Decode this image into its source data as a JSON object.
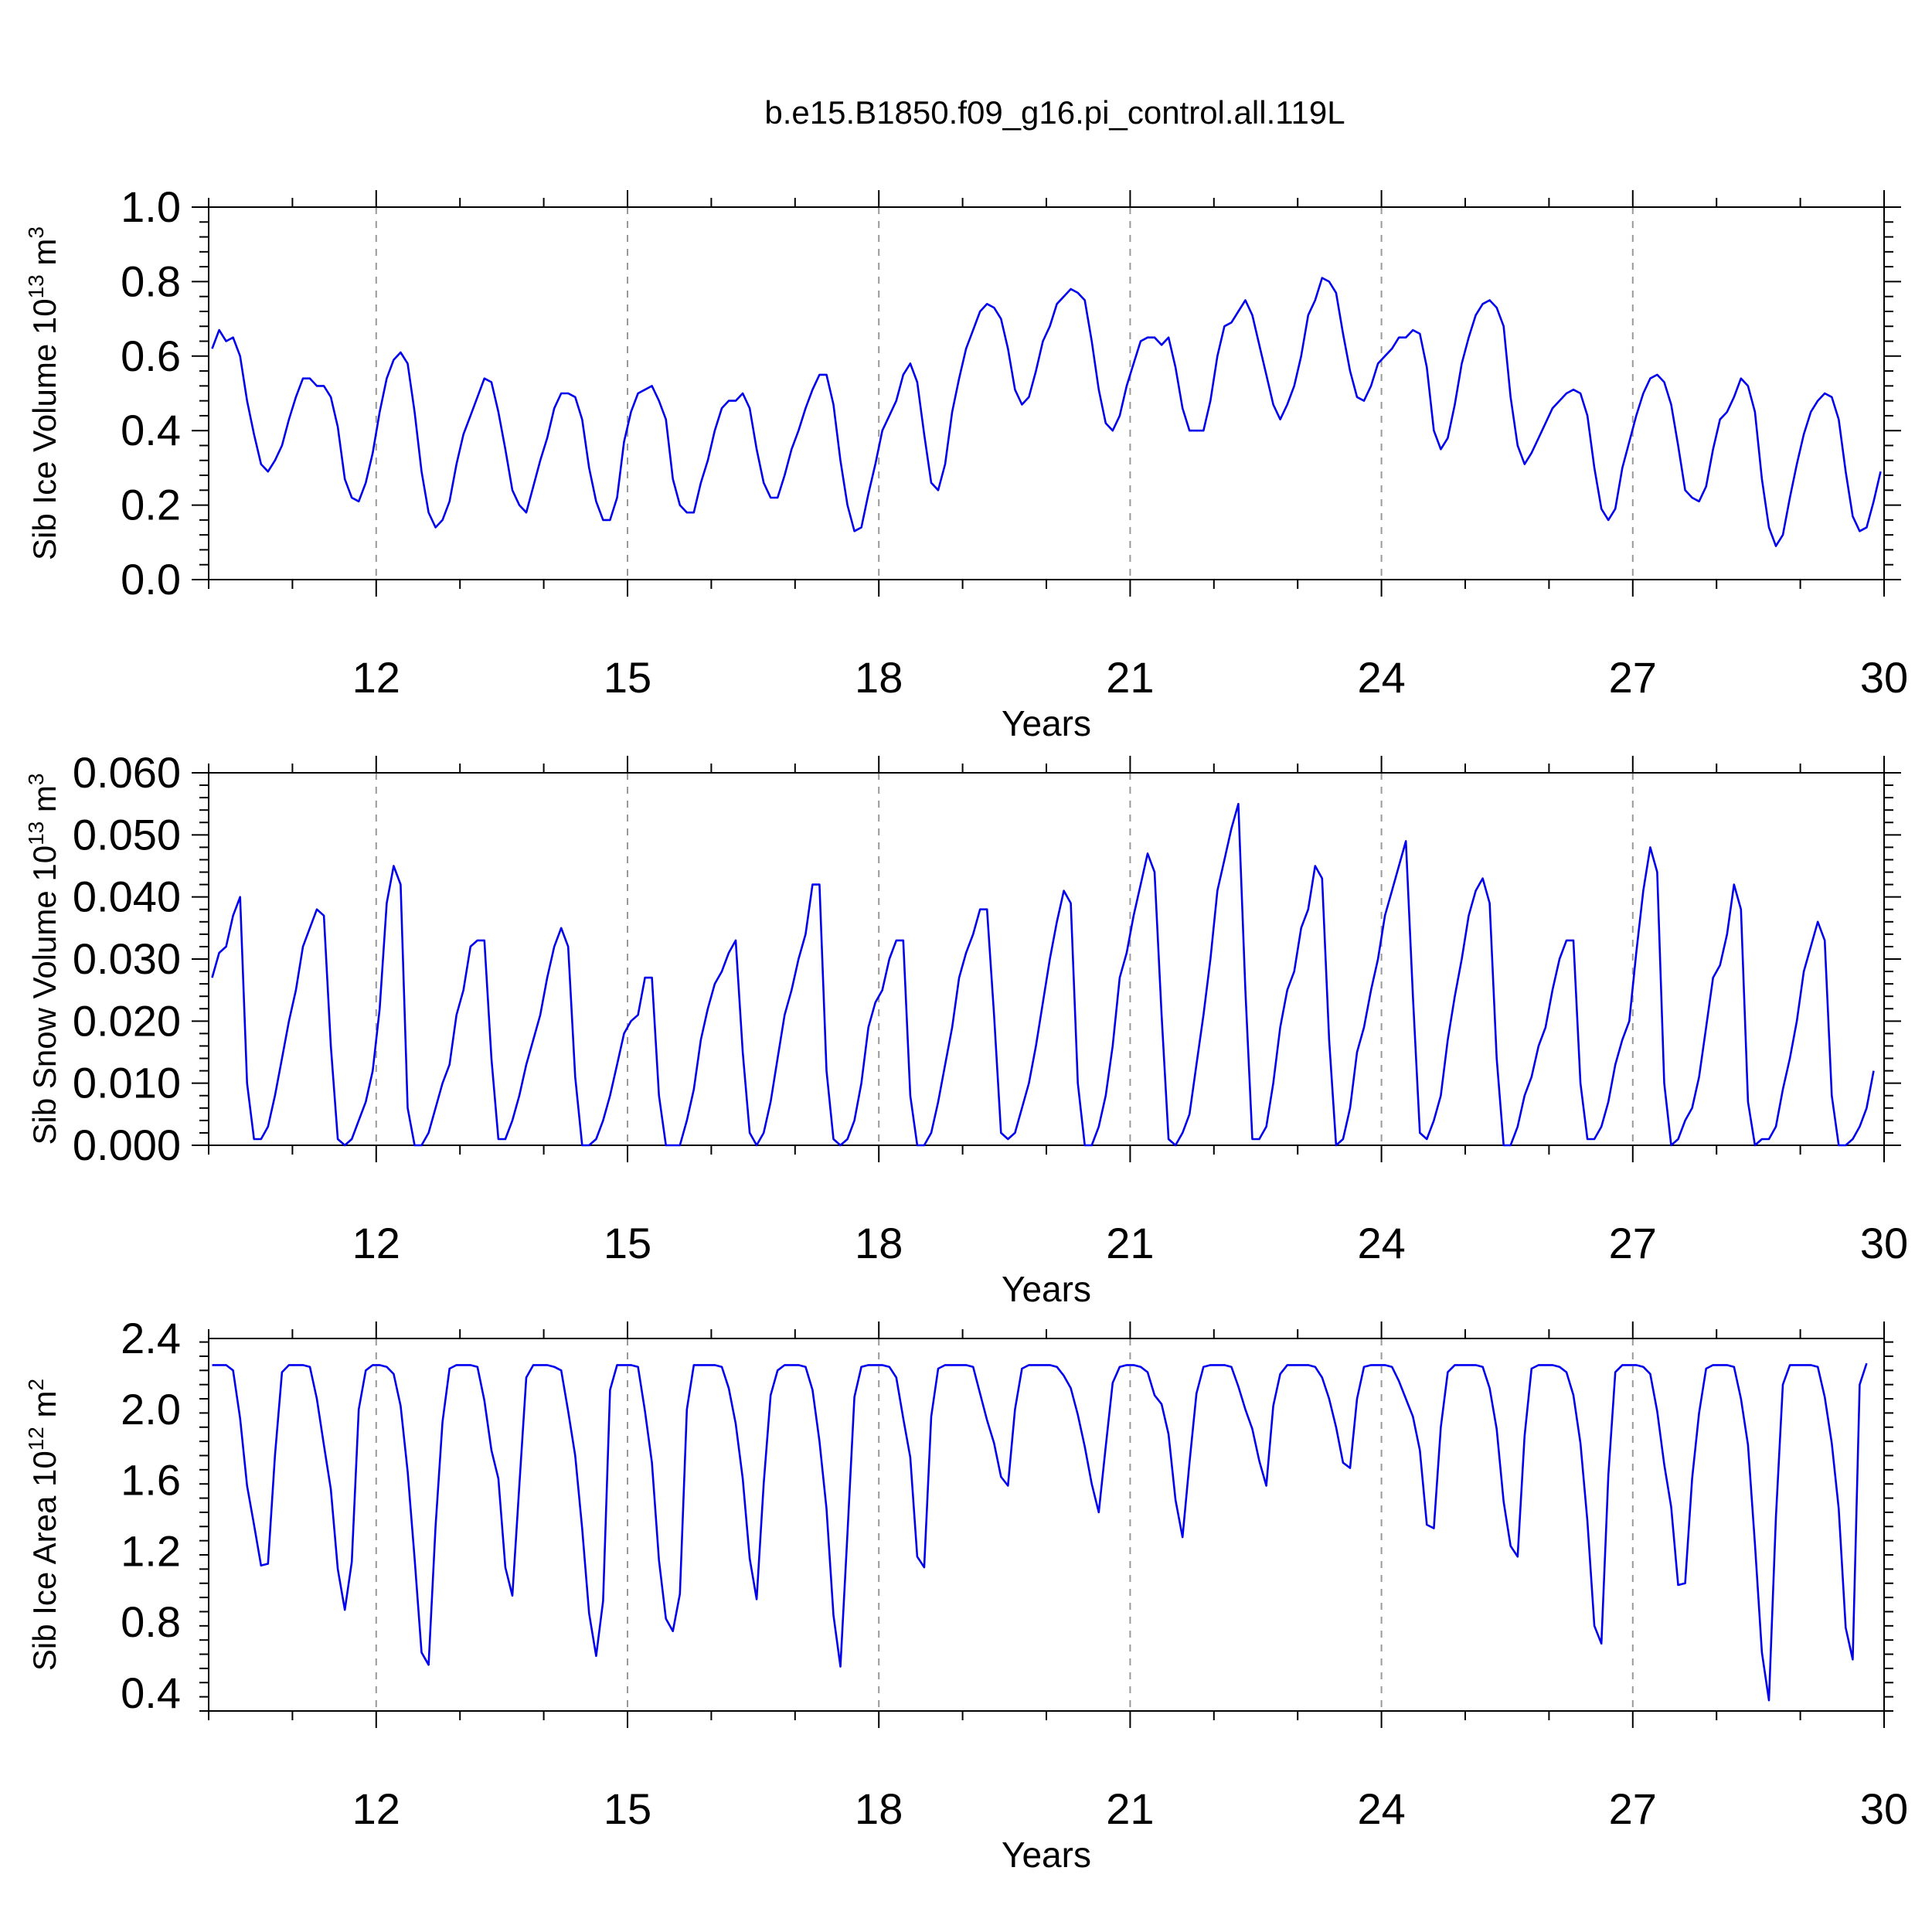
{
  "figure_title": "b.e15.B1850.f09_g16.pi_control.all.119L",
  "colors": {
    "series": "#0000ee",
    "axis": "#000000",
    "grid": "#999999"
  },
  "chart_data": [
    {
      "type": "line",
      "title": "",
      "xlabel": "Years",
      "ylabel_main": "Sib Ice Volume 10",
      "ylabel_exp": "13",
      "ylabel_unit": " m",
      "ylabel_unit_exp": "3",
      "xlim": [
        10,
        30
      ],
      "ylim": [
        0.0,
        1.0
      ],
      "x_ticks": [
        12,
        15,
        18,
        21,
        24,
        27,
        30
      ],
      "x_tick_labels": [
        "12",
        "15",
        "18",
        "21",
        "24",
        "27",
        "30"
      ],
      "y_ticks": [
        0.0,
        0.2,
        0.4,
        0.6,
        0.8,
        1.0
      ],
      "y_tick_labels": [
        "0.0",
        "0.2",
        "0.4",
        "0.6",
        "0.8",
        "1.0"
      ],
      "grid": "vertical dashed at major x ticks",
      "series": [
        {
          "name": "Sib Ice Volume",
          "x_start": 10.0417,
          "x_step": 0.0833333,
          "values": [
            0.62,
            0.67,
            0.64,
            0.65,
            0.6,
            0.48,
            0.39,
            0.31,
            0.29,
            0.32,
            0.36,
            0.43,
            0.49,
            0.54,
            0.54,
            0.52,
            0.52,
            0.49,
            0.41,
            0.27,
            0.22,
            0.21,
            0.26,
            0.34,
            0.45,
            0.54,
            0.59,
            0.61,
            0.58,
            0.45,
            0.29,
            0.18,
            0.14,
            0.16,
            0.21,
            0.31,
            0.39,
            0.44,
            0.49,
            0.54,
            0.53,
            0.45,
            0.35,
            0.24,
            0.2,
            0.18,
            0.25,
            0.32,
            0.38,
            0.46,
            0.5,
            0.5,
            0.49,
            0.43,
            0.3,
            0.21,
            0.16,
            0.16,
            0.22,
            0.37,
            0.45,
            0.5,
            0.51,
            0.52,
            0.48,
            0.43,
            0.27,
            0.2,
            0.18,
            0.18,
            0.26,
            0.32,
            0.4,
            0.46,
            0.48,
            0.48,
            0.5,
            0.46,
            0.35,
            0.26,
            0.22,
            0.22,
            0.28,
            0.35,
            0.4,
            0.46,
            0.51,
            0.55,
            0.55,
            0.47,
            0.32,
            0.2,
            0.13,
            0.14,
            0.23,
            0.31,
            0.4,
            0.44,
            0.48,
            0.55,
            0.58,
            0.53,
            0.39,
            0.26,
            0.24,
            0.31,
            0.45,
            0.54,
            0.62,
            0.67,
            0.72,
            0.74,
            0.73,
            0.7,
            0.62,
            0.51,
            0.47,
            0.49,
            0.56,
            0.64,
            0.68,
            0.74,
            0.76,
            0.78,
            0.77,
            0.75,
            0.64,
            0.51,
            0.42,
            0.4,
            0.44,
            0.52,
            0.58,
            0.64,
            0.65,
            0.65,
            0.63,
            0.65,
            0.57,
            0.46,
            0.4,
            0.4,
            0.4,
            0.48,
            0.6,
            0.68,
            0.69,
            0.72,
            0.75,
            0.71,
            0.63,
            0.55,
            0.47,
            0.43,
            0.47,
            0.52,
            0.6,
            0.71,
            0.75,
            0.81,
            0.8,
            0.77,
            0.66,
            0.56,
            0.49,
            0.48,
            0.52,
            0.58,
            0.6,
            0.62,
            0.65,
            0.65,
            0.67,
            0.66,
            0.57,
            0.4,
            0.35,
            0.38,
            0.47,
            0.58,
            0.65,
            0.71,
            0.74,
            0.75,
            0.73,
            0.68,
            0.49,
            0.36,
            0.31,
            0.34,
            0.38,
            0.42,
            0.46,
            0.48,
            0.5,
            0.51,
            0.5,
            0.44,
            0.3,
            0.19,
            0.16,
            0.19,
            0.3,
            0.37,
            0.44,
            0.5,
            0.54,
            0.55,
            0.53,
            0.47,
            0.36,
            0.24,
            0.22,
            0.21,
            0.25,
            0.35,
            0.43,
            0.45,
            0.49,
            0.54,
            0.52,
            0.45,
            0.27,
            0.14,
            0.09,
            0.12,
            0.22,
            0.31,
            0.39,
            0.45,
            0.48,
            0.5,
            0.49,
            0.43,
            0.29,
            0.17,
            0.13,
            0.14,
            0.21,
            0.29
          ]
        }
      ]
    },
    {
      "type": "line",
      "title": "",
      "xlabel": "Years",
      "ylabel_main": "Sib Snow Volume 10",
      "ylabel_exp": "13",
      "ylabel_unit": " m",
      "ylabel_unit_exp": "3",
      "xlim": [
        10,
        30
      ],
      "ylim": [
        0.0,
        0.06
      ],
      "x_ticks": [
        12,
        15,
        18,
        21,
        24,
        27,
        30
      ],
      "x_tick_labels": [
        "12",
        "15",
        "18",
        "21",
        "24",
        "27",
        "30"
      ],
      "y_ticks": [
        0.0,
        0.01,
        0.02,
        0.03,
        0.04,
        0.05,
        0.06
      ],
      "y_tick_labels": [
        "0.000",
        "0.010",
        "0.020",
        "0.030",
        "0.040",
        "0.050",
        "0.060"
      ],
      "grid": "vertical dashed at major x ticks",
      "series": [
        {
          "name": "Sib Snow Volume",
          "x_start": 10.0417,
          "x_step": 0.0833333,
          "values": [
            0.027,
            0.031,
            0.032,
            0.037,
            0.04,
            0.01,
            0.001,
            0.001,
            0.003,
            0.008,
            0.014,
            0.02,
            0.025,
            0.032,
            0.035,
            0.038,
            0.037,
            0.016,
            0.001,
            0.0,
            0.001,
            0.004,
            0.007,
            0.012,
            0.022,
            0.039,
            0.045,
            0.042,
            0.006,
            0.0,
            0.0,
            0.002,
            0.006,
            0.01,
            0.013,
            0.021,
            0.025,
            0.032,
            0.033,
            0.033,
            0.014,
            0.001,
            0.001,
            0.004,
            0.008,
            0.013,
            0.017,
            0.021,
            0.027,
            0.032,
            0.035,
            0.032,
            0.011,
            0.0,
            0.0,
            0.001,
            0.004,
            0.008,
            0.013,
            0.018,
            0.02,
            0.021,
            0.027,
            0.027,
            0.008,
            0.0,
            0.0,
            0.0,
            0.004,
            0.009,
            0.017,
            0.022,
            0.026,
            0.028,
            0.031,
            0.033,
            0.015,
            0.002,
            0.0,
            0.002,
            0.007,
            0.014,
            0.021,
            0.025,
            0.03,
            0.034,
            0.042,
            0.042,
            0.012,
            0.001,
            0.0,
            0.001,
            0.004,
            0.01,
            0.019,
            0.023,
            0.025,
            0.03,
            0.033,
            0.033,
            0.008,
            0.0,
            0.0,
            0.002,
            0.007,
            0.013,
            0.019,
            0.027,
            0.031,
            0.034,
            0.038,
            0.038,
            0.021,
            0.002,
            0.001,
            0.002,
            0.006,
            0.01,
            0.016,
            0.023,
            0.03,
            0.036,
            0.041,
            0.039,
            0.01,
            0.0,
            0.0,
            0.003,
            0.008,
            0.016,
            0.027,
            0.031,
            0.037,
            0.042,
            0.047,
            0.044,
            0.021,
            0.001,
            0.0,
            0.002,
            0.005,
            0.013,
            0.021,
            0.03,
            0.041,
            0.046,
            0.051,
            0.055,
            0.025,
            0.001,
            0.001,
            0.003,
            0.01,
            0.019,
            0.025,
            0.028,
            0.035,
            0.038,
            0.045,
            0.043,
            0.017,
            0.0,
            0.001,
            0.006,
            0.015,
            0.019,
            0.025,
            0.03,
            0.037,
            0.041,
            0.045,
            0.049,
            0.024,
            0.002,
            0.001,
            0.004,
            0.008,
            0.017,
            0.024,
            0.03,
            0.037,
            0.041,
            0.043,
            0.039,
            0.014,
            0.0,
            0.0,
            0.003,
            0.008,
            0.011,
            0.016,
            0.019,
            0.025,
            0.03,
            0.033,
            0.033,
            0.01,
            0.001,
            0.001,
            0.003,
            0.007,
            0.013,
            0.017,
            0.02,
            0.031,
            0.041,
            0.048,
            0.044,
            0.01,
            0.0,
            0.001,
            0.004,
            0.006,
            0.011,
            0.019,
            0.027,
            0.029,
            0.034,
            0.042,
            0.038,
            0.007,
            0.0,
            0.001,
            0.001,
            0.003,
            0.009,
            0.014,
            0.02,
            0.028,
            0.032,
            0.036,
            0.033,
            0.008,
            0.0,
            0.0,
            0.001,
            0.003,
            0.006,
            0.012
          ]
        }
      ]
    },
    {
      "type": "line",
      "title": "",
      "xlabel": "Years",
      "ylabel_main": "Sib Ice Area 10",
      "ylabel_exp": "12",
      "ylabel_unit": " m",
      "ylabel_unit_exp": "2",
      "xlim": [
        10,
        30
      ],
      "ylim": [
        0.3,
        2.4
      ],
      "x_ticks": [
        12,
        15,
        18,
        21,
        24,
        27,
        30
      ],
      "x_tick_labels": [
        "12",
        "15",
        "18",
        "21",
        "24",
        "27",
        "30"
      ],
      "y_ticks": [
        0.4,
        0.8,
        1.2,
        1.6,
        2.0,
        2.4
      ],
      "y_tick_labels": [
        "0.4",
        "0.8",
        "1.2",
        "1.6",
        "2.0",
        "2.4"
      ],
      "grid": "vertical dashed at major x ticks",
      "series": [
        {
          "name": "Sib Ice Area",
          "x_start": 10.0417,
          "x_step": 0.0833333,
          "values": [
            2.25,
            2.25,
            2.25,
            2.22,
            1.95,
            1.57,
            1.35,
            1.12,
            1.13,
            1.74,
            2.21,
            2.25,
            2.25,
            2.25,
            2.24,
            2.06,
            1.8,
            1.55,
            1.1,
            0.87,
            1.14,
            2.0,
            2.22,
            2.25,
            2.25,
            2.24,
            2.2,
            2.02,
            1.65,
            1.16,
            0.63,
            0.56,
            1.34,
            1.93,
            2.23,
            2.25,
            2.25,
            2.25,
            2.24,
            2.05,
            1.77,
            1.61,
            1.11,
            0.95,
            1.57,
            2.18,
            2.25,
            2.25,
            2.25,
            2.24,
            2.22,
            1.99,
            1.74,
            1.33,
            0.85,
            0.61,
            0.92,
            2.11,
            2.25,
            2.25,
            2.25,
            2.24,
            1.99,
            1.7,
            1.15,
            0.82,
            0.75,
            0.96,
            2.0,
            2.25,
            2.25,
            2.25,
            2.25,
            2.24,
            2.12,
            1.92,
            1.61,
            1.16,
            0.93,
            1.58,
            2.08,
            2.22,
            2.25,
            2.25,
            2.25,
            2.24,
            2.11,
            1.82,
            1.44,
            0.84,
            0.55,
            1.3,
            2.07,
            2.24,
            2.25,
            2.25,
            2.25,
            2.24,
            2.18,
            1.95,
            1.73,
            1.17,
            1.11,
            1.96,
            2.23,
            2.25,
            2.25,
            2.25,
            2.25,
            2.24,
            2.09,
            1.94,
            1.81,
            1.62,
            1.57,
            2.0,
            2.23,
            2.25,
            2.25,
            2.25,
            2.25,
            2.24,
            2.19,
            2.12,
            1.97,
            1.79,
            1.58,
            1.42,
            1.79,
            2.15,
            2.24,
            2.25,
            2.25,
            2.24,
            2.21,
            2.08,
            2.03,
            1.86,
            1.49,
            1.28,
            1.7,
            2.09,
            2.24,
            2.25,
            2.25,
            2.25,
            2.24,
            2.13,
            2.0,
            1.89,
            1.71,
            1.57,
            2.02,
            2.2,
            2.25,
            2.25,
            2.25,
            2.25,
            2.24,
            2.18,
            2.06,
            1.9,
            1.7,
            1.67,
            2.06,
            2.24,
            2.25,
            2.25,
            2.25,
            2.24,
            2.16,
            2.06,
            1.96,
            1.77,
            1.35,
            1.33,
            1.9,
            2.21,
            2.25,
            2.25,
            2.25,
            2.25,
            2.24,
            2.12,
            1.89,
            1.48,
            1.23,
            1.17,
            1.85,
            2.23,
            2.25,
            2.25,
            2.25,
            2.24,
            2.21,
            2.08,
            1.81,
            1.37,
            0.78,
            0.68,
            1.63,
            2.21,
            2.25,
            2.25,
            2.25,
            2.24,
            2.2,
            1.99,
            1.69,
            1.45,
            1.01,
            1.02,
            1.61,
            1.98,
            2.23,
            2.25,
            2.25,
            2.25,
            2.24,
            2.06,
            1.8,
            1.24,
            0.63,
            0.36,
            1.39,
            2.14,
            2.25,
            2.25,
            2.25,
            2.25,
            2.24,
            2.07,
            1.81,
            1.44,
            0.77,
            0.59,
            2.14,
            2.26
          ]
        }
      ]
    }
  ]
}
